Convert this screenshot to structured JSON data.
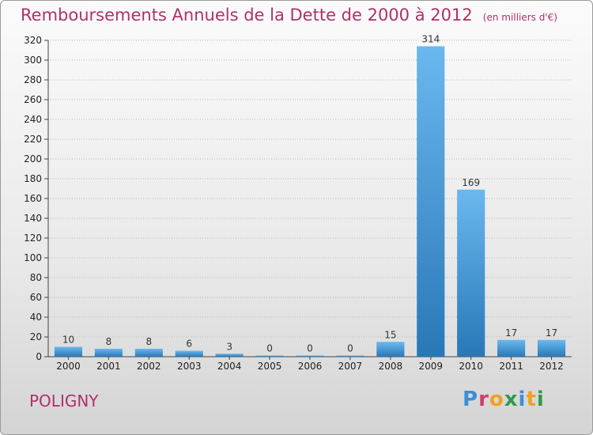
{
  "title": "Remboursements Annuels de la Dette de 2000 à 2012",
  "unit": "(en milliers d'€)",
  "location": "POLIGNY",
  "brand": "Proxiti",
  "colors": {
    "title": "#b0306a",
    "bar_light": "#6ab8ee",
    "bar_dark": "#2878b8",
    "grid": "#b8b8b8"
  },
  "chart_data": {
    "type": "bar",
    "title": "Remboursements Annuels de la Dette de 2000 à 2012",
    "xlabel": "",
    "ylabel": "",
    "categories": [
      "2000",
      "2001",
      "2002",
      "2003",
      "2004",
      "2005",
      "2006",
      "2007",
      "2008",
      "2009",
      "2010",
      "2011",
      "2012"
    ],
    "values": [
      10,
      8,
      8,
      6,
      3,
      0,
      0,
      0,
      15,
      314,
      169,
      17,
      17
    ],
    "ylim": [
      0,
      320
    ],
    "yticks": [
      0,
      20,
      40,
      60,
      80,
      100,
      120,
      140,
      160,
      180,
      200,
      220,
      240,
      260,
      280,
      300,
      320
    ],
    "grid": true,
    "data_labels": true
  }
}
